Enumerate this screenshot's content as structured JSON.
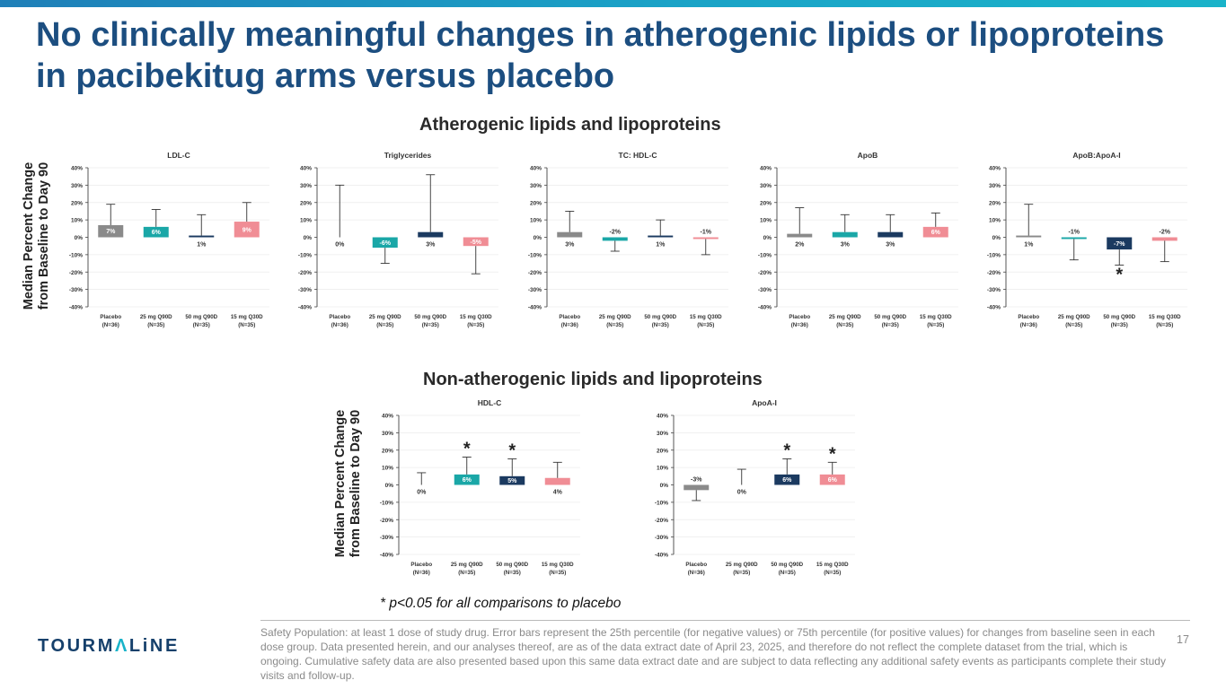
{
  "slide": {
    "title": "No clinically meaningful changes in atherogenic lipids or lipoproteins in pacibekitug arms versus placebo",
    "section_atherogenic": "Atherogenic lipids and lipoproteins",
    "section_non_atherogenic": "Non-atherogenic lipids and lipoproteins",
    "ylabel_line1": "Median Percent Change",
    "ylabel_line2": "from Baseline to Day 90",
    "footnote": "* p<0.05 for all comparisons to placebo",
    "logo_part1": "TOURM",
    "logo_part2": "Λ",
    "logo_part3": "LiNE",
    "disclaimer": "Safety Population: at least 1 dose of study drug. Error bars represent the 25th percentile (for negative values) or 75th percentile (for positive values) for changes from baseline seen in each dose group. Data presented herein, and our analyses thereof, are as of the data extract date of April 23, 2025, and therefore do not reflect the complete dataset from the trial, which is ongoing. Cumulative safety data are also presented based upon this same data extract date and are subject to data reflecting any additional safety events as participants complete their study visits and follow-up.",
    "page_number": "17"
  },
  "colors": {
    "title": "#1c4e80",
    "placebo": "#8a8a8a",
    "dose25": "#1aa7a7",
    "dose50": "#1b3a60",
    "dose15": "#f08d95"
  },
  "chart_data": [
    {
      "type": "bar",
      "title": "LDL-C",
      "categories": [
        "Placebo",
        "25 mg Q90D",
        "50 mg Q90D",
        "15 mg Q30D"
      ],
      "category_sub": [
        "(N=36)",
        "(N=35)",
        "(N=35)",
        "(N=35)"
      ],
      "values": [
        7,
        6,
        1,
        9
      ],
      "labels": [
        "7%",
        "6%",
        "1%",
        "9%"
      ],
      "error_high": [
        19,
        16,
        13,
        20
      ],
      "significant": [
        false,
        false,
        false,
        false
      ],
      "ylim": [
        -40,
        40
      ],
      "yticks": [
        "-40%",
        "-30%",
        "-20%",
        "-10%",
        "0%",
        "10%",
        "20%",
        "30%",
        "40%"
      ]
    },
    {
      "type": "bar",
      "title": "Triglycerides",
      "categories": [
        "Placebo",
        "25 mg Q90D",
        "50 mg Q90D",
        "15 mg Q30D"
      ],
      "category_sub": [
        "(N=36)",
        "(N=35)",
        "(N=35)",
        "(N=35)"
      ],
      "values": [
        0,
        -6,
        3,
        -5
      ],
      "labels": [
        "0%",
        "-6%",
        "3%",
        "-5%"
      ],
      "error_high": [
        30,
        -15,
        36,
        -21
      ],
      "significant": [
        false,
        false,
        false,
        false
      ],
      "ylim": [
        -40,
        40
      ],
      "yticks": [
        "-40%",
        "-30%",
        "-20%",
        "-10%",
        "0%",
        "10%",
        "20%",
        "30%",
        "40%"
      ]
    },
    {
      "type": "bar",
      "title": "TC: HDL-C",
      "categories": [
        "Placebo",
        "25 mg Q90D",
        "50 mg Q90D",
        "15 mg Q30D"
      ],
      "category_sub": [
        "(N=36)",
        "(N=35)",
        "(N=35)",
        "(N=35)"
      ],
      "values": [
        3,
        -2,
        1,
        -1
      ],
      "labels": [
        "3%",
        "-2%",
        "1%",
        "-1%"
      ],
      "error_high": [
        15,
        -8,
        10,
        -10
      ],
      "significant": [
        false,
        false,
        false,
        false
      ],
      "ylim": [
        -40,
        40
      ],
      "yticks": [
        "-40%",
        "-30%",
        "-20%",
        "-10%",
        "0%",
        "10%",
        "20%",
        "30%",
        "40%"
      ]
    },
    {
      "type": "bar",
      "title": "ApoB",
      "categories": [
        "Placebo",
        "25 mg Q90D",
        "50 mg Q90D",
        "15 mg Q30D"
      ],
      "category_sub": [
        "(N=36)",
        "(N=35)",
        "(N=35)",
        "(N=35)"
      ],
      "values": [
        2,
        3,
        3,
        6
      ],
      "labels": [
        "2%",
        "3%",
        "3%",
        "6%"
      ],
      "error_high": [
        17,
        13,
        13,
        14
      ],
      "significant": [
        false,
        false,
        false,
        false
      ],
      "ylim": [
        -40,
        40
      ],
      "yticks": [
        "-40%",
        "-30%",
        "-20%",
        "-10%",
        "0%",
        "10%",
        "20%",
        "30%",
        "40%"
      ]
    },
    {
      "type": "bar",
      "title": "ApoB:ApoA-I",
      "categories": [
        "Placebo",
        "25 mg Q90D",
        "50 mg Q90D",
        "15 mg Q30D"
      ],
      "category_sub": [
        "(N=36)",
        "(N=35)",
        "(N=35)",
        "(N=35)"
      ],
      "values": [
        1,
        -1,
        -7,
        -2
      ],
      "labels": [
        "1%",
        "-1%",
        "-7%",
        "-2%"
      ],
      "error_high": [
        19,
        -13,
        -16,
        -14
      ],
      "significant": [
        false,
        false,
        true,
        false
      ],
      "ylim": [
        -40,
        40
      ],
      "yticks": [
        "-40%",
        "-30%",
        "-20%",
        "-10%",
        "0%",
        "10%",
        "20%",
        "30%",
        "40%"
      ]
    },
    {
      "type": "bar",
      "title": "HDL-C",
      "categories": [
        "Placebo",
        "25 mg Q90D",
        "50 mg Q90D",
        "15 mg Q30D"
      ],
      "category_sub": [
        "(N=36)",
        "(N=35)",
        "(N=35)",
        "(N=35)"
      ],
      "values": [
        0,
        6,
        5,
        4
      ],
      "labels": [
        "0%",
        "6%",
        "5%",
        "4%"
      ],
      "error_high": [
        7,
        16,
        15,
        13
      ],
      "significant": [
        false,
        true,
        true,
        false
      ],
      "ylim": [
        -40,
        40
      ],
      "yticks": [
        "-40%",
        "-30%",
        "-20%",
        "-10%",
        "0%",
        "10%",
        "20%",
        "30%",
        "40%"
      ]
    },
    {
      "type": "bar",
      "title": "ApoA-I",
      "categories": [
        "Placebo",
        "25 mg Q90D",
        "50 mg Q90D",
        "15 mg Q30D"
      ],
      "category_sub": [
        "(N=36)",
        "(N=35)",
        "(N=35)",
        "(N=35)"
      ],
      "values": [
        -3,
        0,
        6,
        6
      ],
      "labels": [
        "-3%",
        "0%",
        "6%",
        "6%"
      ],
      "error_high": [
        -9,
        9,
        15,
        13
      ],
      "significant": [
        false,
        false,
        true,
        true
      ],
      "ylim": [
        -40,
        40
      ],
      "yticks": [
        "-40%",
        "-30%",
        "-20%",
        "-10%",
        "0%",
        "10%",
        "20%",
        "30%",
        "40%"
      ]
    }
  ]
}
